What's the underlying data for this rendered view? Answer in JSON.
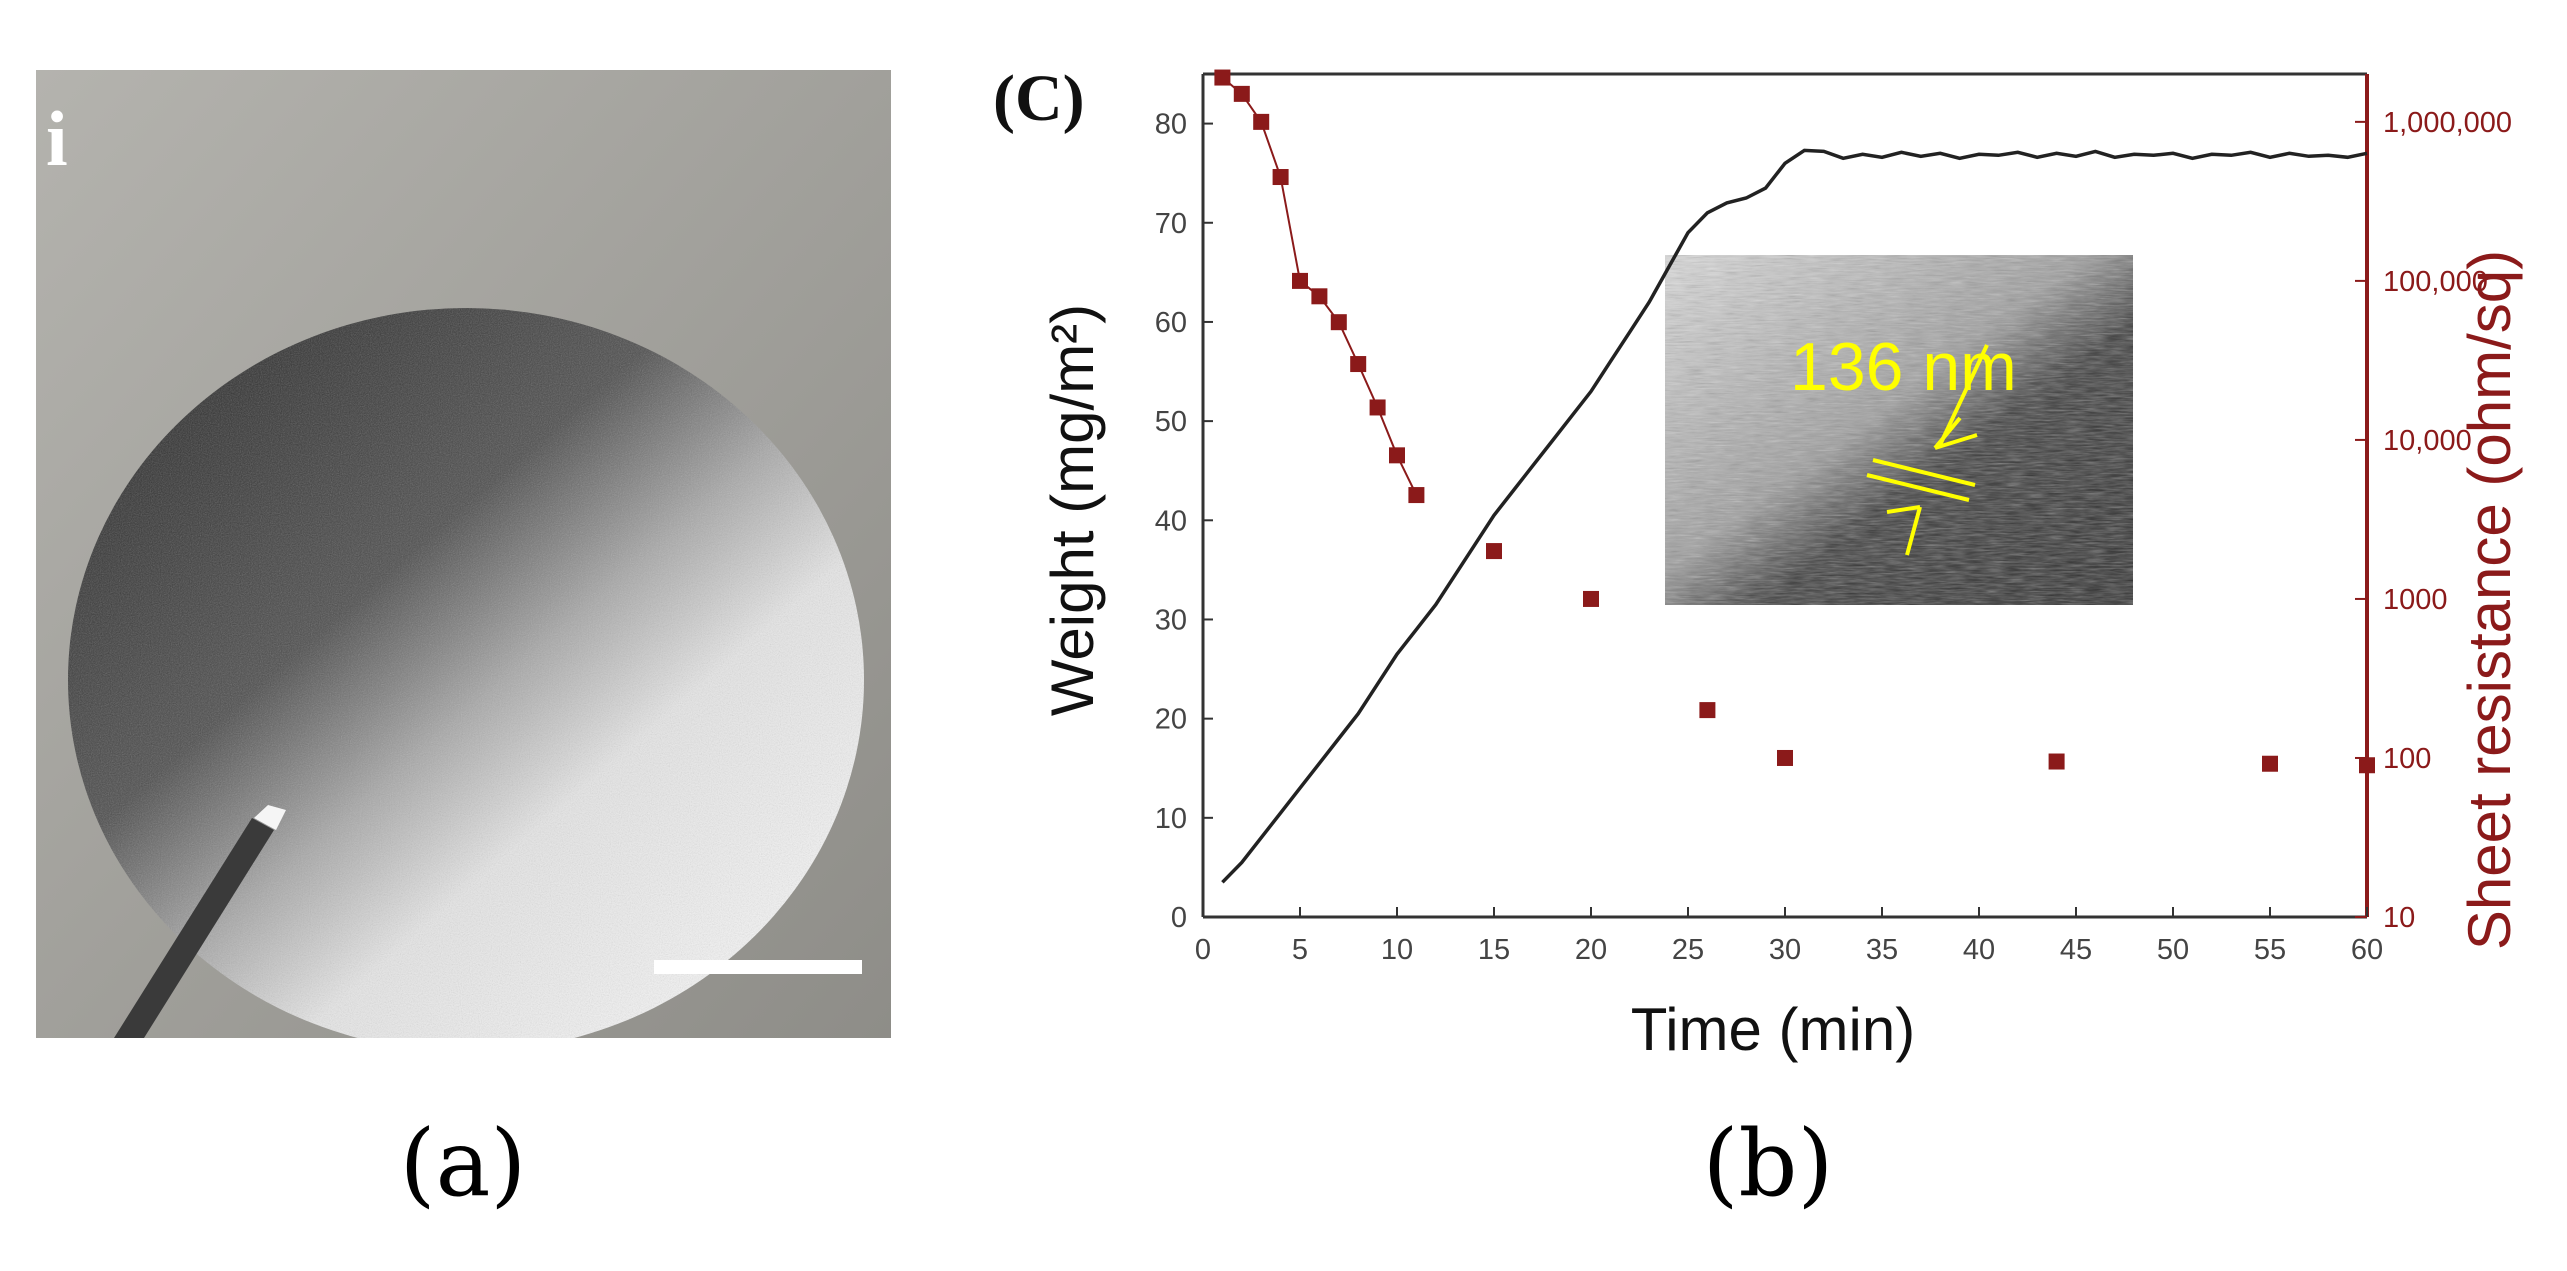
{
  "figure": {
    "caption_a": "(a)",
    "caption_b": "(b)",
    "photo_marker": "i"
  },
  "colors": {
    "weight_line": "#222222",
    "resistance_points": "#8b1a1a",
    "inset_annotation": "#ffff00"
  },
  "chart_data": {
    "type": "line",
    "panel_tag": "(C)",
    "xlabel": "Time (min)",
    "ylabel_left": "Weight (mg/m²)",
    "ylabel_right": "Sheet resistance (ohm/sq)",
    "xlim": [
      0,
      60
    ],
    "ylim_left": [
      0,
      85
    ],
    "ylim_right": [
      10,
      2000000
    ],
    "right_axis_scale": "log",
    "x_ticks": [
      "0",
      "5",
      "10",
      "15",
      "20",
      "25",
      "30",
      "35",
      "40",
      "45",
      "50",
      "55",
      "60"
    ],
    "y_left_ticks": [
      "0",
      "10",
      "20",
      "30",
      "40",
      "50",
      "60",
      "70",
      "80"
    ],
    "y_right_ticks": [
      "10",
      "100",
      "1000",
      "10,000",
      "100,000",
      "1,000,000"
    ],
    "y_right_tick_values": [
      10,
      100,
      1000,
      10000,
      100000,
      1000000
    ],
    "grid": false,
    "series": [
      {
        "axis": "left",
        "style": "line",
        "x": [
          1,
          2,
          3,
          4,
          5,
          6,
          7,
          8,
          9,
          10,
          11,
          12,
          13,
          14,
          15,
          16,
          17,
          18,
          19,
          20,
          21,
          22,
          23,
          24,
          25,
          26,
          27,
          28,
          29,
          30,
          31,
          32,
          33,
          34,
          35,
          36,
          37,
          38,
          39,
          40,
          41,
          42,
          43,
          44,
          45,
          46,
          47,
          48,
          49,
          50,
          51,
          52,
          53,
          54,
          55,
          56,
          57,
          58,
          59,
          60
        ],
        "y": [
          3.5,
          5.5,
          8,
          10.5,
          13,
          15.5,
          18,
          20.5,
          23.5,
          26.5,
          29,
          31.5,
          34.5,
          37.5,
          40.5,
          43,
          45.5,
          48,
          50.5,
          53,
          56,
          59,
          62,
          65.5,
          69,
          71,
          72,
          72.5,
          73.5,
          76,
          77.3,
          77.2,
          76.5,
          76.9,
          76.6,
          77.1,
          76.7,
          77,
          76.5,
          76.9,
          76.8,
          77.1,
          76.6,
          77,
          76.7,
          77.2,
          76.6,
          76.9,
          76.8,
          77,
          76.5,
          76.9,
          76.8,
          77.1,
          76.6,
          77,
          76.7,
          76.8,
          76.6,
          77
        ]
      },
      {
        "axis": "right",
        "style": "markers",
        "connect_first_n": 11,
        "x": [
          1,
          2,
          3,
          4,
          5,
          6,
          7,
          8,
          9,
          10,
          11,
          15,
          20,
          26,
          30,
          44,
          55,
          60
        ],
        "y": [
          1900000,
          1500000,
          1000000,
          450000,
          100000,
          80000,
          55000,
          30000,
          16000,
          8000,
          4500,
          2000,
          1000,
          200,
          100,
          95,
          92,
          90
        ]
      }
    ],
    "inset": {
      "label": "136 nm"
    }
  }
}
